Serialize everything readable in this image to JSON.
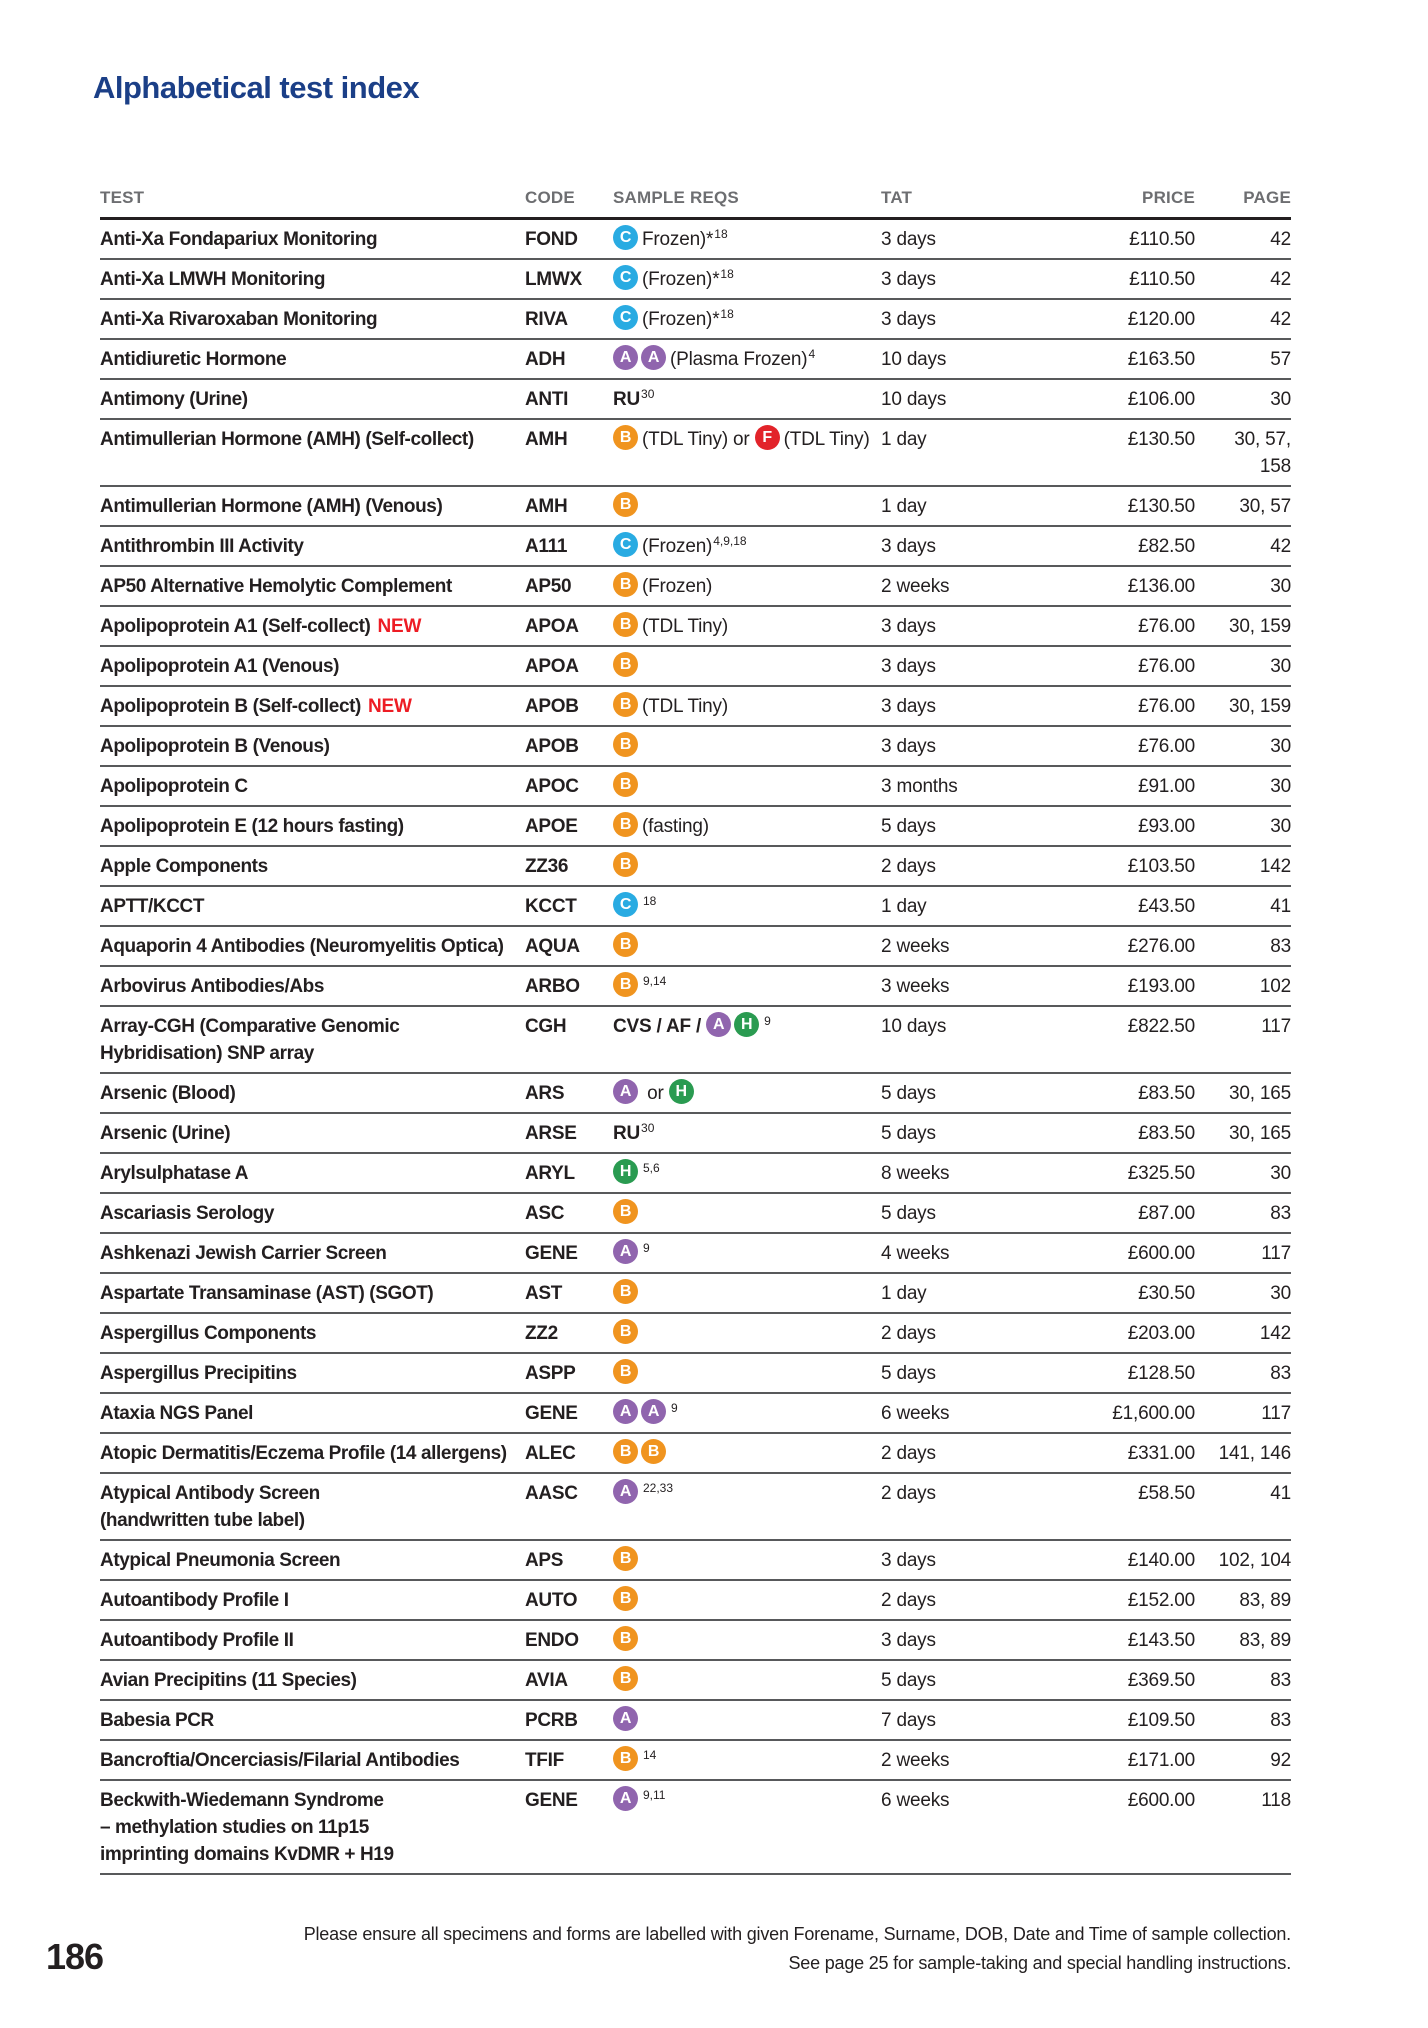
{
  "page": {
    "title": "Alphabetical test index",
    "page_number": "186",
    "footer_line1": "Please ensure all specimens and forms are labelled with given Forename, Surname, DOB, Date and Time of sample collection.",
    "footer_line2": "See page 25 for sample-taking and special handling instructions."
  },
  "icon_colors": {
    "A": "#9065ae",
    "B": "#f0941f",
    "C": "#29abe2",
    "F": "#e2232a",
    "H": "#2a9b51"
  },
  "table": {
    "new_label": "NEW",
    "headers": [
      "TEST",
      "CODE",
      "SAMPLE REQS",
      "TAT",
      "PRICE",
      "PAGE"
    ],
    "rows": [
      {
        "test": "Anti-Xa Fondapariux Monitoring",
        "code": "FOND",
        "sample": [
          {
            "icon": "C"
          },
          {
            "text": "Frozen)*"
          },
          {
            "sup": "18"
          }
        ],
        "tat": "3 days",
        "price": "£110.50",
        "page": "42"
      },
      {
        "test": "Anti-Xa LMWH Monitoring",
        "code": "LMWX",
        "sample": [
          {
            "icon": "C"
          },
          {
            "text": "(Frozen)*"
          },
          {
            "sup": "18"
          }
        ],
        "tat": "3 days",
        "price": "£110.50",
        "page": "42"
      },
      {
        "test": "Anti-Xa Rivaroxaban Monitoring",
        "code": "RIVA",
        "sample": [
          {
            "icon": "C"
          },
          {
            "text": "(Frozen)*"
          },
          {
            "sup": "18"
          }
        ],
        "tat": "3 days",
        "price": "£120.00",
        "page": "42"
      },
      {
        "test": "Antidiuretic Hormone",
        "code": "ADH",
        "sample": [
          {
            "icon": "A"
          },
          {
            "icon": "A"
          },
          {
            "text": "(Plasma Frozen)"
          },
          {
            "sup": "4"
          }
        ],
        "tat": "10 days",
        "price": "£163.50",
        "page": "57"
      },
      {
        "test": "Antimony (Urine)",
        "code": "ANTI",
        "sample": [
          {
            "text": "RU",
            "bold": true
          },
          {
            "sup": "30"
          }
        ],
        "tat": "10 days",
        "price": "£106.00",
        "page": "30"
      },
      {
        "test": "Antimullerian Hormone (AMH) (Self-collect)",
        "code": "AMH",
        "sample": [
          {
            "icon": "B"
          },
          {
            "text": "(TDL Tiny) or "
          },
          {
            "icon": "F"
          },
          {
            "text": "(TDL Tiny)"
          }
        ],
        "tat": "1 day",
        "price": "£130.50",
        "page": "30, 57,\n158"
      },
      {
        "test": "Antimullerian Hormone (AMH) (Venous)",
        "code": "AMH",
        "sample": [
          {
            "icon": "B"
          }
        ],
        "tat": "1 day",
        "price": "£130.50",
        "page": "30, 57"
      },
      {
        "test": "Antithrombin III Activity",
        "code": "A111",
        "sample": [
          {
            "icon": "C"
          },
          {
            "text": "(Frozen)"
          },
          {
            "sup": "4,9,18"
          }
        ],
        "tat": "3 days",
        "price": "£82.50",
        "page": "42"
      },
      {
        "test": "AP50 Alternative Hemolytic Complement",
        "code": "AP50",
        "sample": [
          {
            "icon": "B"
          },
          {
            "text": "(Frozen)"
          }
        ],
        "tat": "2 weeks",
        "price": "£136.00",
        "page": "30"
      },
      {
        "test": "Apolipoprotein A1 (Self-collect)",
        "new": true,
        "code": "APOA",
        "sample": [
          {
            "icon": "B"
          },
          {
            "text": "(TDL Tiny)"
          }
        ],
        "tat": "3 days",
        "price": "£76.00",
        "page": "30, 159"
      },
      {
        "test": "Apolipoprotein A1 (Venous)",
        "code": "APOA",
        "sample": [
          {
            "icon": "B"
          }
        ],
        "tat": "3 days",
        "price": "£76.00",
        "page": "30"
      },
      {
        "test": "Apolipoprotein B (Self-collect)",
        "new": true,
        "code": "APOB",
        "sample": [
          {
            "icon": "B"
          },
          {
            "text": "(TDL Tiny)"
          }
        ],
        "tat": "3 days",
        "price": "£76.00",
        "page": "30, 159"
      },
      {
        "test": "Apolipoprotein B (Venous)",
        "code": "APOB",
        "sample": [
          {
            "icon": "B"
          }
        ],
        "tat": "3 days",
        "price": "£76.00",
        "page": "30"
      },
      {
        "test": "Apolipoprotein C",
        "code": "APOC",
        "sample": [
          {
            "icon": "B"
          }
        ],
        "tat": "3 months",
        "price": "£91.00",
        "page": "30"
      },
      {
        "test": "Apolipoprotein E (12 hours fasting)",
        "code": "APOE",
        "sample": [
          {
            "icon": "B"
          },
          {
            "text": "(fasting)"
          }
        ],
        "tat": "5 days",
        "price": "£93.00",
        "page": "30"
      },
      {
        "test": "Apple Components",
        "code": "ZZ36",
        "sample": [
          {
            "icon": "B"
          }
        ],
        "tat": "2 days",
        "price": "£103.50",
        "page": "142"
      },
      {
        "test": "APTT/KCCT",
        "code": "KCCT",
        "sample": [
          {
            "icon": "C"
          },
          {
            "sup": "18"
          }
        ],
        "tat": "1 day",
        "price": "£43.50",
        "page": "41"
      },
      {
        "test": "Aquaporin 4 Antibodies (Neuromyelitis Optica)",
        "code": "AQUA",
        "sample": [
          {
            "icon": "B"
          }
        ],
        "tat": "2 weeks",
        "price": "£276.00",
        "page": "83"
      },
      {
        "test": "Arbovirus Antibodies/Abs",
        "code": "ARBO",
        "sample": [
          {
            "icon": "B"
          },
          {
            "sup": "9,14"
          }
        ],
        "tat": "3 weeks",
        "price": "£193.00",
        "page": "102"
      },
      {
        "test": "Array-CGH (Comparative Genomic\nHybridisation) SNP array",
        "code": "CGH",
        "sample": [
          {
            "text": "CVS / AF / ",
            "bold": true
          },
          {
            "icon": "A"
          },
          {
            "icon": "H"
          },
          {
            "sup": "9"
          }
        ],
        "tat": "10 days",
        "price": "£822.50",
        "page": "117"
      },
      {
        "test": "Arsenic (Blood)",
        "code": "ARS",
        "sample": [
          {
            "icon": "A"
          },
          {
            "text": " or "
          },
          {
            "icon": "H"
          }
        ],
        "tat": "5 days",
        "price": "£83.50",
        "page": "30, 165"
      },
      {
        "test": "Arsenic (Urine)",
        "code": "ARSE",
        "sample": [
          {
            "text": "RU",
            "bold": true
          },
          {
            "sup": "30"
          }
        ],
        "tat": "5 days",
        "price": "£83.50",
        "page": "30, 165"
      },
      {
        "test": "Arylsulphatase A",
        "code": "ARYL",
        "sample": [
          {
            "icon": "H"
          },
          {
            "sup": "5,6"
          }
        ],
        "tat": "8 weeks",
        "price": "£325.50",
        "page": "30"
      },
      {
        "test": "Ascariasis Serology",
        "code": "ASC",
        "sample": [
          {
            "icon": "B"
          }
        ],
        "tat": "5 days",
        "price": "£87.00",
        "page": "83"
      },
      {
        "test": "Ashkenazi Jewish Carrier Screen",
        "code": "GENE",
        "sample": [
          {
            "icon": "A"
          },
          {
            "sup": "9"
          }
        ],
        "tat": "4 weeks",
        "price": "£600.00",
        "page": "117"
      },
      {
        "test": "Aspartate Transaminase (AST) (SGOT)",
        "code": "AST",
        "sample": [
          {
            "icon": "B"
          }
        ],
        "tat": "1 day",
        "price": "£30.50",
        "page": "30"
      },
      {
        "test": "Aspergillus Components",
        "code": "ZZ2",
        "sample": [
          {
            "icon": "B"
          }
        ],
        "tat": "2 days",
        "price": "£203.00",
        "page": "142"
      },
      {
        "test": "Aspergillus Precipitins",
        "code": "ASPP",
        "sample": [
          {
            "icon": "B"
          }
        ],
        "tat": "5 days",
        "price": "£128.50",
        "page": "83"
      },
      {
        "test": "Ataxia NGS Panel",
        "code": "GENE",
        "sample": [
          {
            "icon": "A"
          },
          {
            "icon": "A"
          },
          {
            "sup": "9"
          }
        ],
        "tat": "6 weeks",
        "price": "£1,600.00",
        "page": "117"
      },
      {
        "test": "Atopic Dermatitis/Eczema Profile (14 allergens)",
        "code": "ALEC",
        "sample": [
          {
            "icon": "B"
          },
          {
            "icon": "B"
          }
        ],
        "tat": "2 days",
        "price": "£331.00",
        "page": "141, 146"
      },
      {
        "test": "Atypical Antibody Screen\n(handwritten tube label)",
        "code": "AASC",
        "sample": [
          {
            "icon": "A"
          },
          {
            "sup": "22,33"
          }
        ],
        "tat": "2 days",
        "price": "£58.50",
        "page": "41"
      },
      {
        "test": "Atypical Pneumonia Screen",
        "code": "APS",
        "sample": [
          {
            "icon": "B"
          }
        ],
        "tat": "3 days",
        "price": "£140.00",
        "page": "102, 104"
      },
      {
        "test": "Autoantibody Profile I",
        "code": "AUTO",
        "sample": [
          {
            "icon": "B"
          }
        ],
        "tat": "2 days",
        "price": "£152.00",
        "page": "83, 89"
      },
      {
        "test": "Autoantibody Profile II",
        "code": "ENDO",
        "sample": [
          {
            "icon": "B"
          }
        ],
        "tat": "3 days",
        "price": "£143.50",
        "page": "83, 89"
      },
      {
        "test": "Avian Precipitins (11 Species)",
        "code": "AVIA",
        "sample": [
          {
            "icon": "B"
          }
        ],
        "tat": "5 days",
        "price": "£369.50",
        "page": "83"
      },
      {
        "test": "Babesia PCR",
        "code": "PCRB",
        "sample": [
          {
            "icon": "A"
          }
        ],
        "tat": "7 days",
        "price": "£109.50",
        "page": "83"
      },
      {
        "test": "Bancroftia/Oncerciasis/Filarial Antibodies",
        "code": "TFIF",
        "sample": [
          {
            "icon": "B"
          },
          {
            "sup": "14"
          }
        ],
        "tat": "2 weeks",
        "price": "£171.00",
        "page": "92"
      },
      {
        "test": "Beckwith-Wiedemann Syndrome\n– methylation studies on 11p15\nimprinting domains KvDMR + H19",
        "code": "GENE",
        "sample": [
          {
            "icon": "A"
          },
          {
            "sup": "9,11"
          }
        ],
        "tat": "6 weeks",
        "price": "£600.00",
        "page": "118"
      }
    ]
  }
}
